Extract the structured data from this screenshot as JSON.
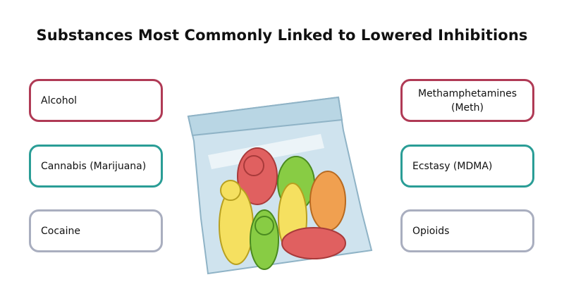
{
  "title": "Substances Most Commonly Linked to Lowered Inhibitions",
  "colors": {
    "red": "#b03a55",
    "teal": "#2a9d96",
    "gray": "#a9aebf"
  },
  "left_items": [
    {
      "label": "Alcohol",
      "color": "#b03a55"
    },
    {
      "label": "Cannabis (Marijuana)",
      "color": "#2a9d96"
    },
    {
      "label": "Cocaine",
      "color": "#a9aebf"
    }
  ],
  "right_items": [
    {
      "label": "Methamphetamines (Meth)",
      "color": "#b03a55"
    },
    {
      "label": "Ecstasy (MDMA)",
      "color": "#2a9d96"
    },
    {
      "label": "Opioids",
      "color": "#a9aebf"
    }
  ],
  "illustration": "bag-of-gummy-bears"
}
